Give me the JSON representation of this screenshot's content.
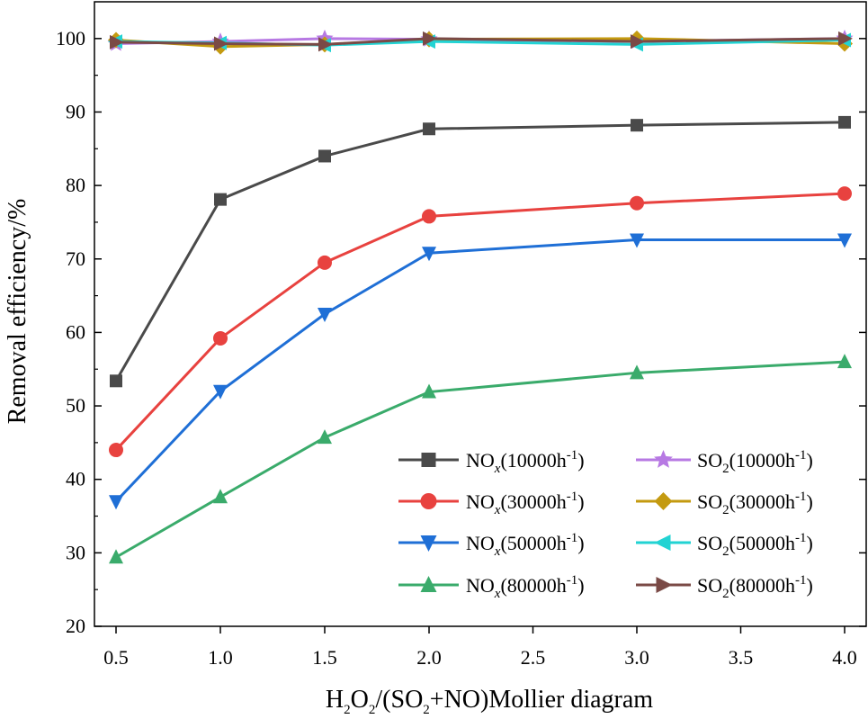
{
  "chart_data": {
    "type": "line",
    "title": "",
    "xlabel": {
      "main": "H",
      "sub1": "2",
      "mid1": "O",
      "sub2": "2",
      "mid2": "/(SO",
      "sub3": "2",
      "rest": "+NO)Mollier diagram"
    },
    "ylabel": "Removal efficiency/%",
    "x": [
      0.5,
      1.0,
      1.5,
      2.0,
      3.0,
      4.0
    ],
    "xtick_values": [
      0.5,
      1.0,
      1.5,
      2.0,
      2.5,
      3.0,
      3.5,
      4.0
    ],
    "xtick_labels": [
      "0.5",
      "1.0",
      "1.5",
      "2.0",
      "2.5",
      "3.0",
      "3.5",
      "4.0"
    ],
    "ylim": [
      20,
      105
    ],
    "ytick_values": [
      20,
      30,
      40,
      50,
      60,
      70,
      80,
      90,
      100
    ],
    "ytick_labels": [
      "20",
      "30",
      "40",
      "50",
      "60",
      "70",
      "80",
      "90",
      "100"
    ],
    "legend_position": "bottom-right",
    "series": [
      {
        "key": "nox-10000",
        "prefix": "NO",
        "sub": "x",
        "suffix": "(10000h",
        "sup": "-1",
        "close": ")",
        "color": "#4a4a4a",
        "marker": "square",
        "values": [
          53.4,
          78.1,
          84.0,
          87.7,
          88.2,
          88.6
        ]
      },
      {
        "key": "nox-30000",
        "prefix": "NO",
        "sub": "x",
        "suffix": "(30000h",
        "sup": "-1",
        "close": ")",
        "color": "#e8423f",
        "marker": "circle",
        "values": [
          44.0,
          59.2,
          69.5,
          75.8,
          77.6,
          78.9
        ]
      },
      {
        "key": "nox-50000",
        "prefix": "NO",
        "sub": "x",
        "suffix": "(50000h",
        "sup": "-1",
        "close": ")",
        "color": "#1f6fd6",
        "marker": "triangle-down",
        "values": [
          37.0,
          52.0,
          62.5,
          70.8,
          72.6,
          72.6
        ]
      },
      {
        "key": "nox-80000",
        "prefix": "NO",
        "sub": "x",
        "suffix": "(80000h",
        "sup": "-1",
        "close": ")",
        "color": "#3aab6b",
        "marker": "triangle-up",
        "values": [
          29.4,
          37.6,
          45.7,
          51.9,
          54.5,
          56.0
        ]
      },
      {
        "key": "so2-10000",
        "prefix": "SO",
        "sub": "2",
        "suffix": "(10000h",
        "sup": "-1",
        "close": ")",
        "color": "#b779e3",
        "marker": "star",
        "values": [
          99.3,
          99.6,
          100.0,
          99.9,
          99.6,
          100.0
        ]
      },
      {
        "key": "so2-30000",
        "prefix": "SO",
        "sub": "2",
        "suffix": "(30000h",
        "sup": "-1",
        "close": ")",
        "color": "#c49a10",
        "marker": "diamond",
        "values": [
          99.8,
          98.9,
          99.2,
          99.9,
          100.0,
          99.3
        ]
      },
      {
        "key": "so2-50000",
        "prefix": "SO",
        "sub": "2",
        "suffix": "(50000h",
        "sup": "-1",
        "close": ")",
        "color": "#22d3d3",
        "marker": "triangle-left",
        "values": [
          99.6,
          99.4,
          99.1,
          99.6,
          99.2,
          99.8
        ]
      },
      {
        "key": "so2-80000",
        "prefix": "SO",
        "sub": "2",
        "suffix": "(80000h",
        "sup": "-1",
        "close": ")",
        "color": "#7a4a46",
        "marker": "triangle-right",
        "values": [
          99.5,
          99.3,
          99.2,
          100.0,
          99.6,
          100.0
        ]
      }
    ]
  }
}
